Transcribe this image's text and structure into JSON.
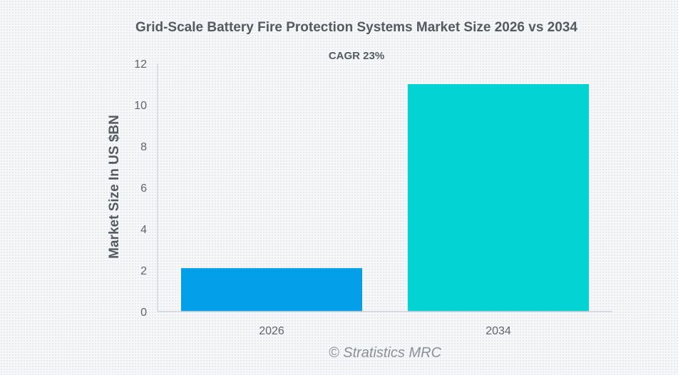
{
  "chart_data": {
    "type": "bar",
    "title": "Grid-Scale Battery Fire Protection Systems Market Size 2026 vs 2034",
    "subtitle": "CAGR 23%",
    "xlabel": "",
    "ylabel": "Market Size In US $BN",
    "categories": [
      "2026",
      "2034"
    ],
    "values": [
      2.1,
      11.0
    ],
    "colors": [
      "#039fe9",
      "#03d3d3"
    ],
    "ylim": [
      0,
      12
    ],
    "yticks": [
      0,
      2,
      4,
      6,
      8,
      10,
      12
    ],
    "grid": false,
    "legend": "none"
  },
  "credit": "© Stratistics MRC"
}
